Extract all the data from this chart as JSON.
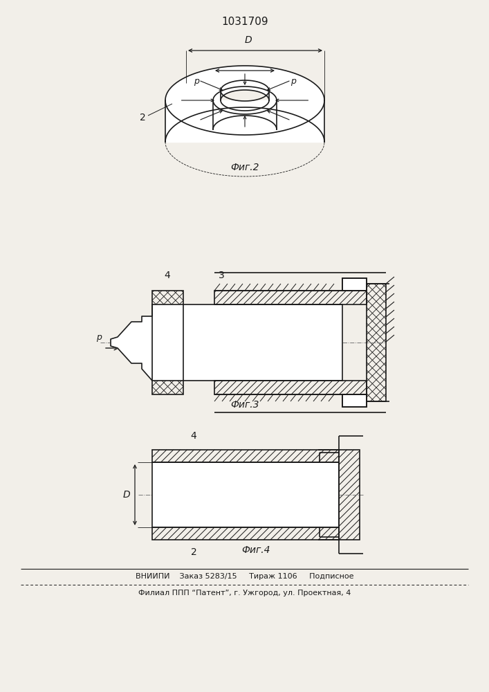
{
  "title": "1031709",
  "fig2_label": "Фиг.2",
  "fig3_label": "Фиг.3",
  "fig4_label": "Фиг.4",
  "footer_line1": "ВНИИПИ    Заказ 5283/15     Тираж 1106     Подписное",
  "footer_line2": "Филиал ППП “Патент”, г. Ужгород, ул. Проектная, 4",
  "bg_color": "#f2efe9",
  "line_color": "#1a1a1a"
}
